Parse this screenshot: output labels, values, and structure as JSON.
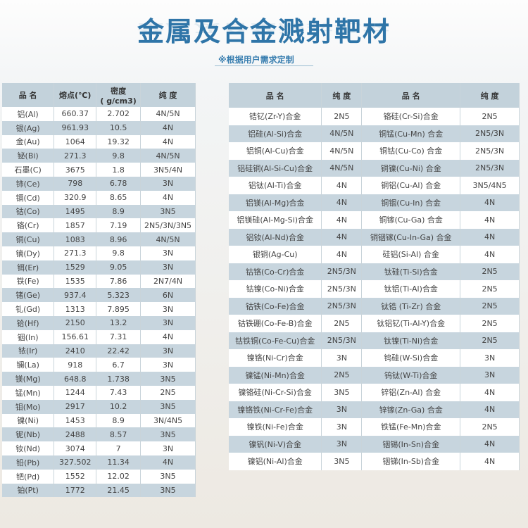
{
  "title": "金属及合金溅射靶材",
  "subtitle": "※根据用户需求定制",
  "metals": {
    "headers": [
      "品 名",
      "熔点(℃)",
      "密度\n( g/cm3)",
      "纯 度"
    ],
    "rows": [
      [
        "铝(Al)",
        "660.37",
        "2.702",
        "4N/5N"
      ],
      [
        "银(Ag)",
        "961.93",
        "10.5",
        "4N"
      ],
      [
        "金(Au)",
        "1064",
        "19.32",
        "4N"
      ],
      [
        "铋(Bi)",
        "271.3",
        "9.8",
        "4N/5N"
      ],
      [
        "石墨(C)",
        "3675",
        "1.8",
        "3N5/4N"
      ],
      [
        "铈(Ce)",
        "798",
        "6.78",
        "3N"
      ],
      [
        "镉(Cd)",
        "320.9",
        "8.65",
        "4N"
      ],
      [
        "钴(Co)",
        "1495",
        "8.9",
        "3N5"
      ],
      [
        "铬(Cr)",
        "1857",
        "7.19",
        "2N5/3N/3N5"
      ],
      [
        "铜(Cu)",
        "1083",
        "8.96",
        "4N/5N"
      ],
      [
        "镝(Dy)",
        "271.3",
        "9.8",
        "3N"
      ],
      [
        "铒(Er)",
        "1529",
        "9.05",
        "3N"
      ],
      [
        "铁(Fe)",
        "1535",
        "7.86",
        "2N7/4N"
      ],
      [
        "锗(Ge)",
        "937.4",
        "5.323",
        "6N"
      ],
      [
        "钆(Gd)",
        "1313",
        "7.895",
        "3N"
      ],
      [
        "铪(Hf)",
        "2150",
        "13.2",
        "3N"
      ],
      [
        "铟(In)",
        "156.61",
        "7.31",
        "4N"
      ],
      [
        "铱(Ir)",
        "2410",
        "22.42",
        "3N"
      ],
      [
        "镧(La)",
        "918",
        "6.7",
        "3N"
      ],
      [
        "镁(Mg)",
        "648.8",
        "1.738",
        "3N5"
      ],
      [
        "锰(Mn)",
        "1244",
        "7.43",
        "2N5"
      ],
      [
        "钼(Mo)",
        "2917",
        "10.2",
        "3N5"
      ],
      [
        "镍(Ni)",
        "1453",
        "8.9",
        "3N/4N5"
      ],
      [
        "铌(Nb)",
        "2488",
        "8.57",
        "3N5"
      ],
      [
        "钕(Nd)",
        "3074",
        "7",
        "3N"
      ],
      [
        "铅(Pb)",
        "327.502",
        "11.34",
        "4N"
      ],
      [
        "钯(Pd)",
        "1552",
        "12.02",
        "3N5"
      ],
      [
        "铂(Pt)",
        "1772",
        "21.45",
        "3N5"
      ]
    ]
  },
  "alloys": {
    "headers": [
      "品 名",
      "纯 度",
      "品 名",
      "纯 度"
    ],
    "rows": [
      [
        "锆钇(Zr-Y)合金",
        "2N5",
        "铬硅(Cr-Si)合金",
        "2N5"
      ],
      [
        "铝硅(Al-Si)合金",
        "4N/5N",
        "铜锰(Cu-Mn) 合金",
        "2N5/3N"
      ],
      [
        "铝铜(Al-Cu)合金",
        "4N/5N",
        "铜钴(Cu-Co) 合金",
        "2N5/3N"
      ],
      [
        "铝硅铜(Al-Si-Cu)合金",
        "4N/5N",
        "铜镍(Cu-Ni) 合金",
        "2N5/3N"
      ],
      [
        "铝钛(Al-Ti)合金",
        "4N",
        "铜铝(Cu-Al) 合金",
        "3N5/4N5"
      ],
      [
        "铝镁(Al-Mg)合金",
        "4N",
        "铜铟(Cu-In) 合金",
        "4N"
      ],
      [
        "铝镁硅(Al-Mg-Si)合金",
        "4N",
        "铜镓(Cu-Ga) 合金",
        "4N"
      ],
      [
        "铝钕(Al-Nd)合金",
        "4N",
        "铜铟镓(Cu-In-Ga) 合金",
        "4N"
      ],
      [
        "银铜(Ag-Cu)",
        "4N",
        "硅铝(Si-Al) 合金",
        "4N"
      ],
      [
        "钴铬(Co-Cr)合金",
        "2N5/3N",
        "钛硅(Ti-Si)合金",
        "2N5"
      ],
      [
        "钴镍(Co-Ni)合金",
        "2N5/3N",
        "钛铝(Ti-Al)合金",
        "2N5"
      ],
      [
        "钴铁(Co-Fe)合金",
        "2N5/3N",
        "钛锆 (Ti-Zr) 合金",
        "2N5"
      ],
      [
        "钴铁硼(Co-Fe-B)合金",
        "2N5",
        "钛铝钇(Ti-Al-Y)合金",
        "2N5"
      ],
      [
        "钴铁铜(Co-Fe-Cu)合金",
        "2N5/3N",
        "钛镍(Ti-Ni)合金",
        "2N5"
      ],
      [
        "镍铬(Ni-Cr)合金",
        "3N",
        "钨硅(W-Si)合金",
        "3N"
      ],
      [
        "镍锰(Ni-Mn)合金",
        "2N5",
        "钨钛(W-Ti)合金",
        "3N"
      ],
      [
        "镍铬硅(Ni-Cr-Si)合金",
        "3N5",
        "锌铝(Zn-Al) 合金",
        "4N"
      ],
      [
        "镍铬铁(Ni-Cr-Fe)合金",
        "3N",
        "锌镓(Zn-Ga) 合金",
        "4N"
      ],
      [
        "镍铁(Ni-Fe)合金",
        "3N",
        "铁锰(Fe-Mn)合金",
        "2N5"
      ],
      [
        "镍钒(Ni-V)合金",
        "3N",
        "铟锡(In-Sn)合金",
        "4N"
      ],
      [
        "镍铝(Ni-Al)合金",
        "3N5",
        "铟锑(In-Sb)合金",
        "4N"
      ]
    ]
  }
}
